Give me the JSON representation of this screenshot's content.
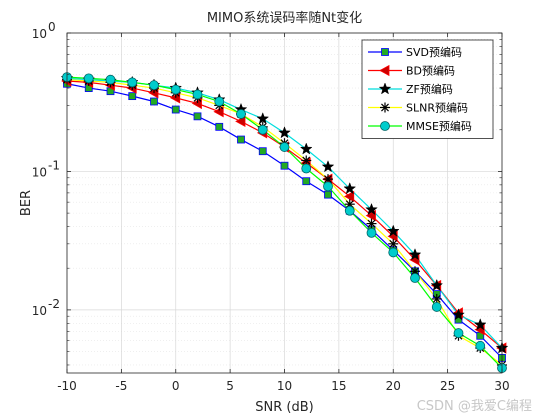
{
  "chart_data": {
    "type": "line",
    "title": "MIMO系统误码率随Nt变化",
    "xlabel": "SNR (dB)",
    "ylabel": "BER",
    "xlim": [
      -10,
      30
    ],
    "ylim": [
      0.0035,
      1
    ],
    "yscale": "log",
    "xticks": [
      -10,
      -5,
      0,
      5,
      10,
      15,
      20,
      25,
      30
    ],
    "xtick_labels": [
      "-10",
      "-5",
      "0",
      "5",
      "10",
      "15",
      "20",
      "25",
      "30"
    ],
    "yticks": [
      0.01,
      0.1,
      1
    ],
    "ytick_labels": [
      {
        "base": "10",
        "exp": "-2"
      },
      {
        "base": "10",
        "exp": "-1"
      },
      {
        "base": "10",
        "exp": "0"
      }
    ],
    "grid": true,
    "legend_position": "top-right",
    "x": [
      -10,
      -8,
      -6,
      -4,
      -2,
      0,
      2,
      4,
      6,
      8,
      10,
      12,
      14,
      16,
      18,
      20,
      22,
      24,
      26,
      28,
      30
    ],
    "series": [
      {
        "name": "SVD预编码",
        "color": "#0000ff",
        "marker": "square",
        "marker_fill": "#22aa22",
        "values": [
          0.43,
          0.4,
          0.38,
          0.35,
          0.32,
          0.28,
          0.25,
          0.21,
          0.17,
          0.14,
          0.11,
          0.085,
          0.068,
          0.052,
          0.038,
          0.027,
          0.019,
          0.013,
          0.0085,
          0.0065,
          0.0045
        ]
      },
      {
        "name": "BD预编码",
        "color": "#ff0000",
        "marker": "triangle-left",
        "marker_fill": "#cc0000",
        "values": [
          0.45,
          0.44,
          0.42,
          0.4,
          0.37,
          0.34,
          0.31,
          0.27,
          0.23,
          0.19,
          0.15,
          0.115,
          0.088,
          0.066,
          0.048,
          0.034,
          0.023,
          0.015,
          0.0095,
          0.0072,
          0.0053
        ]
      },
      {
        "name": "ZF预编码",
        "color": "#00dddd",
        "marker": "star",
        "marker_fill": "#000000",
        "values": [
          0.47,
          0.46,
          0.45,
          0.44,
          0.42,
          0.4,
          0.37,
          0.33,
          0.28,
          0.24,
          0.19,
          0.145,
          0.108,
          0.075,
          0.053,
          0.037,
          0.025,
          0.015,
          0.0092,
          0.0078,
          0.0053
        ]
      },
      {
        "name": "SLNR预编码",
        "color": "#ffff00",
        "marker": "asterisk",
        "marker_fill": "#000000",
        "values": [
          0.46,
          0.45,
          0.44,
          0.42,
          0.4,
          0.37,
          0.34,
          0.3,
          0.26,
          0.21,
          0.16,
          0.12,
          0.088,
          0.058,
          0.042,
          0.03,
          0.019,
          0.012,
          0.0065,
          0.0053,
          0.004
        ]
      },
      {
        "name": "MMSE预编码",
        "color": "#00ff00",
        "marker": "circle",
        "marker_fill": "#00cccc",
        "values": [
          0.48,
          0.47,
          0.46,
          0.44,
          0.42,
          0.39,
          0.36,
          0.32,
          0.26,
          0.2,
          0.15,
          0.105,
          0.078,
          0.052,
          0.036,
          0.026,
          0.017,
          0.0105,
          0.0068,
          0.0055,
          0.0038
        ]
      }
    ]
  },
  "watermark": "CSDN @我爱C编程"
}
